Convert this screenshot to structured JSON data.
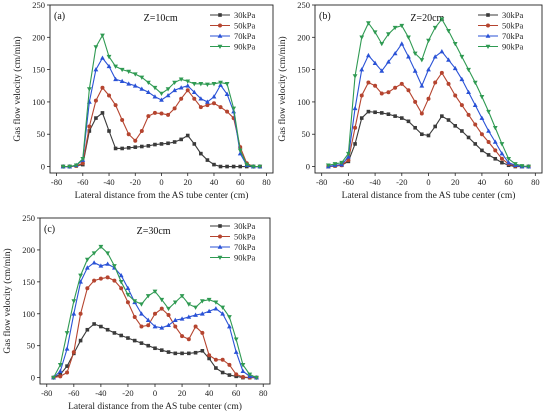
{
  "chart_data": [
    {
      "type": "line",
      "panel_label": "(a)",
      "annotation": "Z=10cm",
      "xlabel": "Lateral distance from the AS tube center (cm)",
      "ylabel": "Gas flow velocity (cm/min)",
      "xlim": [
        -85,
        85
      ],
      "ylim": [
        -10,
        250
      ],
      "xticks": [
        -80,
        -60,
        -40,
        -20,
        0,
        20,
        40,
        60,
        80
      ],
      "yticks": [
        0,
        50,
        100,
        150,
        200,
        250
      ],
      "x": [
        -75,
        -70,
        -65,
        -60,
        -55,
        -50,
        -45,
        -40,
        -35,
        -30,
        -25,
        -20,
        -15,
        -10,
        -5,
        0,
        5,
        10,
        15,
        20,
        25,
        30,
        35,
        40,
        45,
        50,
        55,
        60,
        65,
        70,
        75
      ],
      "series": [
        {
          "name": "30kPa",
          "color": "#3a3a3a",
          "marker": "square",
          "values": [
            0,
            0,
            1,
            3,
            55,
            75,
            83,
            55,
            28,
            28,
            29,
            30,
            31,
            32,
            34,
            35,
            36,
            38,
            42,
            48,
            35,
            20,
            10,
            3,
            0,
            0,
            0,
            0,
            0,
            0,
            0
          ]
        },
        {
          "name": "50kPa",
          "color": "#b5442f",
          "marker": "circle",
          "values": [
            0,
            0,
            1,
            5,
            62,
            102,
            122,
            110,
            95,
            72,
            50,
            40,
            55,
            78,
            83,
            82,
            80,
            90,
            105,
            118,
            105,
            92,
            95,
            98,
            92,
            85,
            75,
            30,
            5,
            0,
            0
          ]
        },
        {
          "name": "70kPa",
          "color": "#2a52d6",
          "marker": "triangle-up",
          "values": [
            0,
            0,
            2,
            10,
            100,
            150,
            168,
            155,
            135,
            132,
            128,
            125,
            120,
            115,
            108,
            103,
            110,
            118,
            122,
            125,
            115,
            105,
            100,
            108,
            126,
            112,
            85,
            20,
            2,
            0,
            0
          ]
        },
        {
          "name": "90kPa",
          "color": "#2f9a52",
          "marker": "triangle-down",
          "values": [
            0,
            0,
            2,
            12,
            120,
            185,
            203,
            170,
            155,
            150,
            147,
            143,
            138,
            130,
            122,
            113,
            120,
            130,
            135,
            132,
            128,
            128,
            127,
            128,
            130,
            128,
            90,
            25,
            3,
            0,
            0
          ]
        }
      ]
    },
    {
      "type": "line",
      "panel_label": "(b)",
      "annotation": "Z=20cm",
      "xlabel": "Lateral distance from the AS tube center (cm)",
      "ylabel": "Gas flow velocity (cm/min)",
      "xlim": [
        -85,
        85
      ],
      "ylim": [
        -10,
        250
      ],
      "xticks": [
        -80,
        -60,
        -40,
        -20,
        0,
        20,
        40,
        60,
        80
      ],
      "yticks": [
        0,
        50,
        100,
        150,
        200,
        250
      ],
      "x": [
        -75,
        -70,
        -65,
        -60,
        -55,
        -50,
        -45,
        -40,
        -35,
        -30,
        -25,
        -20,
        -15,
        -10,
        -5,
        0,
        5,
        10,
        15,
        20,
        25,
        30,
        35,
        40,
        45,
        50,
        55,
        60,
        65,
        70,
        75
      ],
      "series": [
        {
          "name": "30kPa",
          "color": "#3a3a3a",
          "marker": "square",
          "values": [
            0,
            1,
            2,
            8,
            35,
            75,
            85,
            84,
            83,
            81,
            78,
            75,
            70,
            60,
            50,
            48,
            62,
            78,
            72,
            63,
            55,
            45,
            35,
            25,
            18,
            12,
            6,
            2,
            0,
            0,
            0
          ]
        },
        {
          "name": "50kPa",
          "color": "#b5442f",
          "marker": "circle",
          "values": [
            0,
            1,
            2,
            10,
            60,
            110,
            130,
            125,
            113,
            115,
            122,
            128,
            118,
            100,
            82,
            105,
            130,
            145,
            128,
            110,
            95,
            80,
            65,
            50,
            38,
            25,
            12,
            4,
            1,
            0,
            0
          ]
        },
        {
          "name": "70kPa",
          "color": "#2a52d6",
          "marker": "triangle-up",
          "values": [
            0,
            2,
            3,
            15,
            90,
            150,
            172,
            160,
            148,
            162,
            175,
            190,
            170,
            148,
            125,
            150,
            170,
            178,
            165,
            152,
            135,
            115,
            95,
            75,
            55,
            38,
            20,
            6,
            2,
            0,
            0
          ]
        },
        {
          "name": "90kPa",
          "color": "#2f9a52",
          "marker": "triangle-down",
          "values": [
            2,
            4,
            6,
            20,
            140,
            200,
            222,
            208,
            190,
            205,
            215,
            218,
            200,
            175,
            165,
            195,
            215,
            228,
            210,
            190,
            170,
            150,
            130,
            108,
            85,
            60,
            35,
            12,
            4,
            1,
            0
          ]
        }
      ]
    },
    {
      "type": "line",
      "panel_label": "(c)",
      "annotation": "Z=30cm",
      "xlabel": "Lateral distance from the AS tube center (cm)",
      "ylabel": "Gas flow velocity (cm/min)",
      "xlim": [
        -85,
        85
      ],
      "ylim": [
        -10,
        250
      ],
      "xticks": [
        -80,
        -60,
        -40,
        -20,
        0,
        20,
        40,
        60,
        80
      ],
      "yticks": [
        0,
        50,
        100,
        150,
        200,
        250
      ],
      "x": [
        -75,
        -70,
        -65,
        -60,
        -55,
        -50,
        -45,
        -40,
        -35,
        -30,
        -25,
        -20,
        -15,
        -10,
        -5,
        0,
        5,
        10,
        15,
        20,
        25,
        30,
        35,
        40,
        45,
        50,
        55,
        60,
        65,
        70,
        75
      ],
      "series": [
        {
          "name": "30kPa",
          "color": "#3a3a3a",
          "marker": "square",
          "values": [
            0,
            5,
            18,
            38,
            58,
            75,
            84,
            80,
            75,
            70,
            66,
            62,
            58,
            54,
            50,
            46,
            43,
            40,
            38,
            38,
            38,
            39,
            42,
            30,
            15,
            8,
            4,
            2,
            0,
            0,
            0
          ]
        },
        {
          "name": "50kPa",
          "color": "#b5442f",
          "marker": "circle",
          "values": [
            0,
            2,
            8,
            40,
            100,
            140,
            152,
            155,
            157,
            152,
            140,
            118,
            95,
            80,
            82,
            100,
            108,
            98,
            80,
            65,
            60,
            80,
            70,
            35,
            28,
            28,
            20,
            5,
            1,
            0,
            0
          ]
        },
        {
          "name": "70kPa",
          "color": "#2a52d6",
          "marker": "triangle-up",
          "values": [
            0,
            10,
            45,
            100,
            150,
            172,
            180,
            175,
            178,
            172,
            160,
            140,
            118,
            100,
            90,
            80,
            78,
            82,
            90,
            92,
            95,
            98,
            100,
            104,
            108,
            100,
            80,
            40,
            10,
            2,
            0
          ]
        },
        {
          "name": "90kPa",
          "color": "#2f9a52",
          "marker": "triangle-down",
          "values": [
            0,
            20,
            70,
            120,
            160,
            185,
            195,
            205,
            195,
            175,
            150,
            130,
            120,
            115,
            128,
            135,
            122,
            108,
            118,
            128,
            115,
            110,
            120,
            122,
            118,
            110,
            95,
            60,
            20,
            5,
            0
          ]
        }
      ]
    }
  ]
}
